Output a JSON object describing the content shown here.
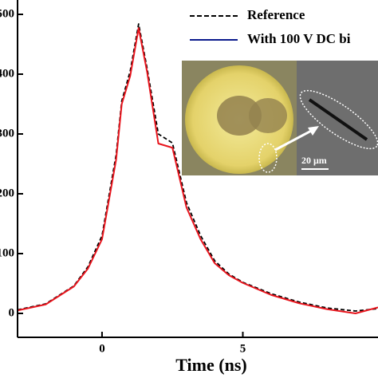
{
  "chart_data": {
    "type": "line",
    "x_label": "Time (ns)",
    "x": [
      -3,
      -2,
      -1,
      -0.5,
      0,
      0.5,
      0.7,
      1.0,
      1.3,
      1.6,
      2.0,
      2.5,
      3.0,
      3.5,
      4.0,
      4.5,
      5.0,
      6.0,
      7.0,
      8.0,
      9.0,
      9.8
    ],
    "series": [
      {
        "name": "Reference",
        "color": "#000000",
        "dash": true,
        "values": [
          6,
          16,
          46,
          78,
          130,
          265,
          355,
          405,
          484,
          410,
          300,
          285,
          185,
          130,
          88,
          66,
          52,
          33,
          19,
          9,
          4,
          8
        ]
      },
      {
        "name": "With 100 V DC bi",
        "color": "#e8141c",
        "legend_color": "#0a1a8c",
        "dash": false,
        "values": [
          5,
          15,
          45,
          75,
          124,
          257,
          350,
          397,
          477,
          404,
          284,
          277,
          177,
          124,
          84,
          64,
          51,
          31,
          17,
          7,
          0,
          10
        ]
      }
    ],
    "xlim": [
      -3,
      9.8
    ],
    "xticks": [
      0,
      5
    ],
    "ylim": [
      -40,
      524
    ],
    "yticks": [
      0,
      100,
      200,
      300,
      400,
      500
    ],
    "scale_bar_label": "20 μm"
  }
}
